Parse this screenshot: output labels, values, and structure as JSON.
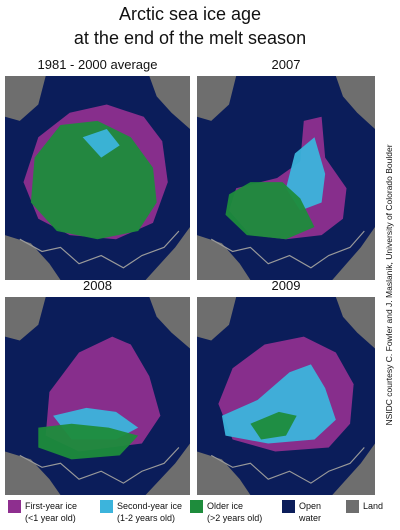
{
  "title": [
    "Arctic sea ice age",
    "at the end of the melt season"
  ],
  "panels": [
    {
      "title": "1981 - 2000 average"
    },
    {
      "title": "2007"
    },
    {
      "title": "2008"
    },
    {
      "title": "2009"
    }
  ],
  "legend": [
    {
      "label": "First-year ice",
      "sublabel": "(<1 year old)"
    },
    {
      "label": "Second-year ice",
      "sublabel": "(1-2 years old)"
    },
    {
      "label": "Older ice",
      "sublabel": "(>2 years old)"
    },
    {
      "label": "Open",
      "sublabel": "water"
    },
    {
      "label": "Land"
    }
  ],
  "credit": "NSIDC courtesy C. Fowler and J. Maslanik, University of Colorado Boulder"
}
